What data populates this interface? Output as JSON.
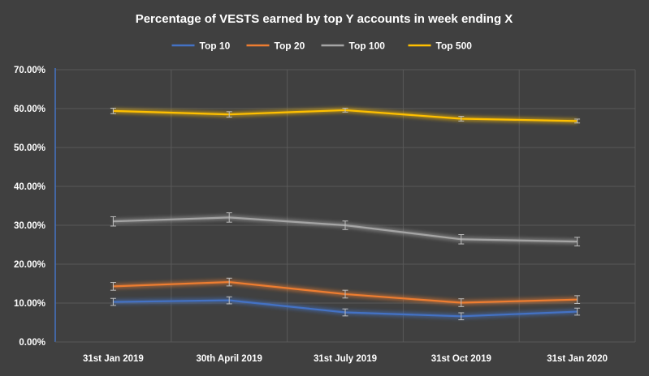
{
  "chart_data": {
    "type": "line",
    "title": "Percentage of VESTS earned by top Y accounts in week ending X",
    "xlabel": "",
    "ylabel": "",
    "categories": [
      "31st Jan 2019",
      "30th April 2019",
      "31st July 2019",
      "31st Oct 2019",
      "31st Jan 2020"
    ],
    "y_ticks": [
      "0.00%",
      "10.00%",
      "20.00%",
      "30.00%",
      "40.00%",
      "50.00%",
      "60.00%",
      "70.00%"
    ],
    "ylim": [
      0,
      70
    ],
    "y_unit": "%",
    "grid": true,
    "legend_position": "top-center",
    "error_bars": true,
    "series": [
      {
        "name": "Top 10",
        "color": "#4472C4",
        "values": [
          10.3,
          10.7,
          7.6,
          6.6,
          7.8
        ],
        "errors": [
          0.9,
          0.9,
          0.9,
          0.9,
          0.9
        ]
      },
      {
        "name": "Top 20",
        "color": "#ED7D31",
        "values": [
          14.3,
          15.4,
          12.3,
          10.1,
          10.9
        ],
        "errors": [
          1.0,
          1.0,
          1.0,
          1.0,
          1.0
        ]
      },
      {
        "name": "Top 100",
        "color": "#A5A5A5",
        "values": [
          31.0,
          32.0,
          30.0,
          26.4,
          25.8
        ],
        "errors": [
          1.2,
          1.2,
          1.1,
          1.2,
          1.1
        ]
      },
      {
        "name": "Top 500",
        "color": "#FFC000",
        "values": [
          59.4,
          58.5,
          59.6,
          57.4,
          56.8
        ],
        "errors": [
          0.7,
          0.7,
          0.5,
          0.6,
          0.5
        ]
      }
    ]
  },
  "colors": {
    "background": "#404040",
    "grid": "#595959",
    "axis": "#4472C4",
    "text": "#FFFFFF"
  }
}
